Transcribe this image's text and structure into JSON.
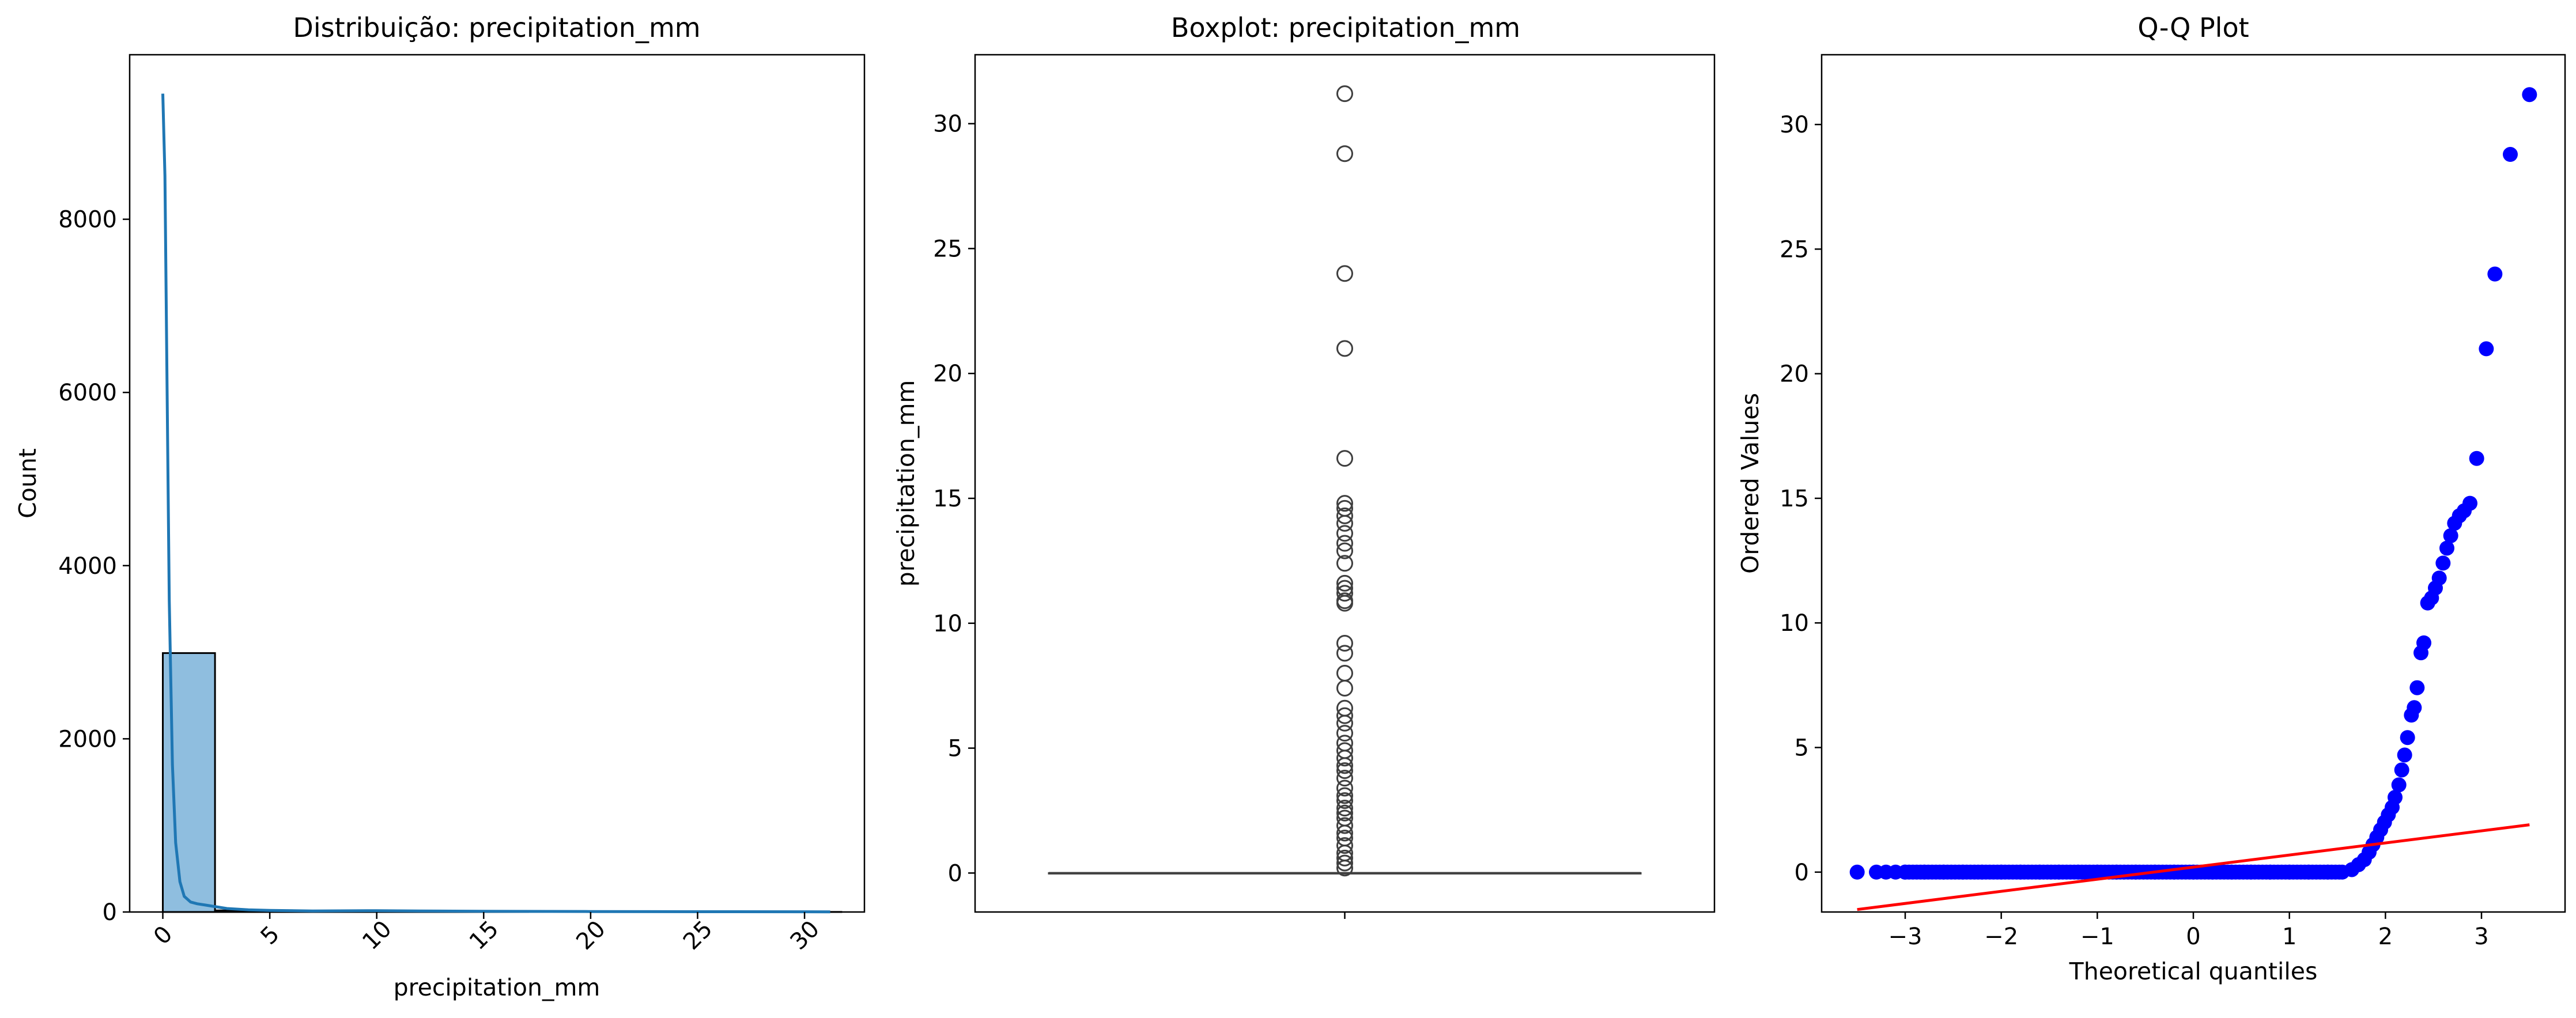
{
  "chart_data": [
    {
      "type": "bar",
      "title": "Distribuição: precipitation_mm",
      "xlabel": "precipitation_mm",
      "ylabel": "Count",
      "xlim": [
        -1.55,
        32.8
      ],
      "ylim": [
        0,
        9900
      ],
      "xticks": [
        "0",
        "5",
        "10",
        "15",
        "20",
        "25",
        "30"
      ],
      "yticks": [
        "0",
        "2000",
        "4000",
        "6000",
        "8000"
      ],
      "bar_color": "#8fbedf",
      "kde_color": "#1f77b4",
      "bins": [
        {
          "x0": 0.0,
          "x1": 2.44,
          "count": 2990
        },
        {
          "x0": 2.44,
          "x1": 4.88,
          "count": 18
        },
        {
          "x0": 4.88,
          "x1": 7.32,
          "count": 10
        },
        {
          "x0": 7.32,
          "x1": 9.76,
          "count": 4
        },
        {
          "x0": 9.76,
          "x1": 12.2,
          "count": 5
        },
        {
          "x0": 12.2,
          "x1": 14.64,
          "count": 6
        },
        {
          "x0": 14.64,
          "x1": 17.08,
          "count": 2
        },
        {
          "x0": 17.08,
          "x1": 19.52,
          "count": 0
        },
        {
          "x0": 19.52,
          "x1": 21.96,
          "count": 1
        },
        {
          "x0": 21.96,
          "x1": 24.4,
          "count": 1
        },
        {
          "x0": 24.4,
          "x1": 26.84,
          "count": 0
        },
        {
          "x0": 26.84,
          "x1": 29.28,
          "count": 1
        },
        {
          "x0": 29.28,
          "x1": 31.72,
          "count": 1
        }
      ],
      "kde": {
        "x": [
          0,
          0.1,
          0.2,
          0.3,
          0.45,
          0.6,
          0.8,
          1.0,
          1.3,
          1.6,
          2.0,
          2.5,
          3.0,
          4.0,
          5.0,
          7.0,
          10.0,
          12.0,
          15.0,
          20.0,
          25.0,
          31.2
        ],
        "y": [
          9450,
          8500,
          6000,
          3600,
          1700,
          800,
          350,
          180,
          115,
          95,
          80,
          60,
          40,
          25,
          18,
          12,
          15,
          12,
          8,
          5,
          3,
          2
        ]
      }
    },
    {
      "type": "boxplot",
      "title": "Boxplot: precipitation_mm",
      "ylabel": "precipitation_mm",
      "ylim": [
        -1.56,
        32.76
      ],
      "yticks": [
        "0",
        "5",
        "10",
        "15",
        "20",
        "25",
        "30"
      ],
      "median": 0,
      "q1": 0,
      "q3": 0,
      "whisker_low": 0,
      "whisker_high": 0,
      "outliers": [
        31.2,
        28.8,
        24.0,
        21.0,
        16.6,
        14.8,
        14.6,
        14.3,
        14.0,
        13.6,
        13.2,
        12.9,
        12.4,
        11.6,
        11.4,
        11.2,
        10.9,
        10.8,
        9.2,
        8.8,
        8.0,
        7.4,
        6.6,
        6.3,
        6.0,
        5.6,
        5.2,
        4.9,
        4.6,
        4.3,
        4.1,
        3.8,
        3.4,
        3.1,
        2.9,
        2.6,
        2.4,
        2.2,
        1.9,
        1.6,
        1.4,
        1.1,
        0.8,
        0.6,
        0.4,
        0.2
      ]
    },
    {
      "type": "scatter",
      "title": "Q-Q Plot",
      "xlabel": "Theoretical quantiles",
      "ylabel": "Ordered Values",
      "xlim": [
        -3.87,
        3.87
      ],
      "ylim": [
        -1.6,
        32.8
      ],
      "xticks": [
        "−3",
        "−2",
        "−1",
        "0",
        "1",
        "2",
        "3"
      ],
      "yticks": [
        "0",
        "5",
        "10",
        "15",
        "20",
        "25",
        "30"
      ],
      "point_color": "#0000ff",
      "line_color": "#ff0000",
      "fit_line": {
        "x": [
          -3.5,
          3.5
        ],
        "y": [
          -1.5,
          1.9
        ]
      },
      "points": {
        "x": [
          -3.5,
          -3.3,
          -3.2,
          -3.1,
          -3.0,
          -2.8,
          -2.6,
          -2.4,
          -2.2,
          -2.0,
          -1.8,
          -1.6,
          -1.4,
          -1.2,
          -1.0,
          -0.8,
          -0.6,
          -0.4,
          -0.2,
          0.0,
          0.2,
          0.4,
          0.6,
          0.8,
          1.0,
          1.2,
          1.4,
          1.55,
          1.65,
          1.72,
          1.78,
          1.83,
          1.87,
          1.91,
          1.95,
          1.99,
          2.03,
          2.07,
          2.1,
          2.14,
          2.17,
          2.2,
          2.23,
          2.27,
          2.3,
          2.33,
          2.37,
          2.4,
          2.44,
          2.48,
          2.52,
          2.56,
          2.6,
          2.64,
          2.68,
          2.72,
          2.77,
          2.82,
          2.88,
          2.95,
          3.05,
          3.14,
          3.3,
          3.5
        ],
        "y": [
          0,
          0,
          0,
          0,
          0,
          0,
          0,
          0,
          0,
          0,
          0,
          0,
          0,
          0,
          0,
          0,
          0,
          0,
          0,
          0,
          0,
          0,
          0,
          0,
          0,
          0,
          0,
          0,
          0.1,
          0.3,
          0.5,
          0.8,
          1.1,
          1.4,
          1.7,
          2.0,
          2.3,
          2.6,
          3.0,
          3.5,
          4.1,
          4.7,
          5.4,
          6.3,
          6.6,
          7.4,
          8.8,
          9.2,
          10.8,
          11.0,
          11.4,
          11.8,
          12.4,
          13.0,
          13.5,
          14.0,
          14.3,
          14.5,
          14.8,
          16.6,
          21.0,
          24.0,
          28.8,
          31.2
        ]
      }
    }
  ]
}
